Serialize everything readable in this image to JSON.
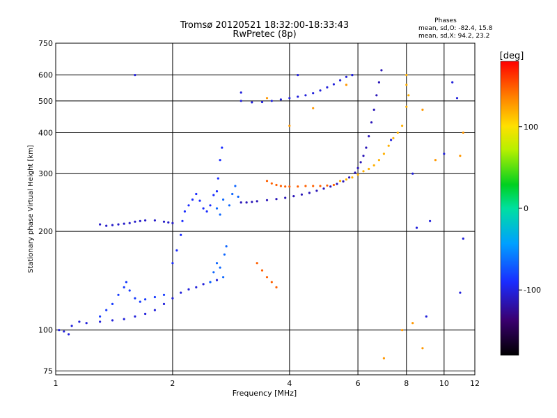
{
  "chart_data": {
    "type": "scatter",
    "title": "Tromsø 20120521 18:32:00-18:33:43",
    "subtitle": "RwPretec (8p)",
    "xlabel": "Frequency [MHz]",
    "ylabel": "Stationary phase Virtual Height [km]",
    "x_scale": "log",
    "y_scale": "log",
    "xlim": [
      1,
      12
    ],
    "ylim": [
      73,
      750
    ],
    "x_ticks": [
      "1",
      "2",
      "4",
      "6",
      "8",
      "10",
      "12"
    ],
    "x_tick_values": [
      1,
      2,
      4,
      6,
      8,
      10,
      12
    ],
    "y_ticks": [
      "75",
      "100",
      "200",
      "300",
      "400",
      "500",
      "600",
      "750"
    ],
    "y_tick_values": [
      75,
      100,
      200,
      300,
      400,
      500,
      600,
      750
    ],
    "grid": true,
    "legend": {
      "title": "Phases",
      "lines": [
        "mean, sd,O:  -82.4, 15.8",
        "mean, sd,X:  94.2, 23.2"
      ],
      "placement": "top-right"
    },
    "colorbar": {
      "label": "[deg]",
      "ticks": [
        "100",
        "0",
        "-100"
      ],
      "tick_values": [
        100,
        0,
        -100
      ],
      "range": [
        -180,
        180
      ]
    },
    "series": [
      {
        "phase": -110,
        "points": [
          [
            1.02,
            100
          ],
          [
            1.05,
            99
          ],
          [
            1.08,
            97
          ],
          [
            1.1,
            103
          ],
          [
            1.15,
            106
          ],
          [
            1.2,
            105
          ],
          [
            1.3,
            106
          ],
          [
            1.4,
            107
          ],
          [
            1.5,
            108
          ],
          [
            1.6,
            110
          ],
          [
            1.7,
            112
          ],
          [
            1.8,
            115
          ],
          [
            1.9,
            120
          ],
          [
            2.0,
            125
          ],
          [
            2.1,
            130
          ],
          [
            2.2,
            133
          ],
          [
            2.3,
            135
          ],
          [
            2.4,
            138
          ],
          [
            2.5,
            140
          ],
          [
            2.6,
            142
          ]
        ]
      },
      {
        "phase": -95,
        "points": [
          [
            1.3,
            110
          ],
          [
            1.35,
            115
          ],
          [
            1.4,
            120
          ],
          [
            1.45,
            128
          ],
          [
            1.5,
            135
          ],
          [
            1.52,
            140
          ],
          [
            1.55,
            132
          ],
          [
            1.6,
            125
          ],
          [
            1.65,
            122
          ],
          [
            1.7,
            124
          ],
          [
            1.8,
            126
          ],
          [
            1.9,
            128
          ]
        ]
      },
      {
        "phase": -100,
        "points": [
          [
            2.0,
            160
          ],
          [
            2.05,
            175
          ],
          [
            2.1,
            195
          ],
          [
            2.12,
            215
          ],
          [
            2.15,
            230
          ],
          [
            2.2,
            240
          ],
          [
            2.25,
            250
          ],
          [
            2.3,
            260
          ],
          [
            2.35,
            248
          ],
          [
            2.4,
            235
          ],
          [
            2.45,
            230
          ],
          [
            2.5,
            240
          ],
          [
            2.55,
            258
          ],
          [
            2.6,
            265
          ],
          [
            2.62,
            290
          ],
          [
            2.65,
            330
          ],
          [
            2.68,
            360
          ]
        ]
      },
      {
        "phase": -80,
        "points": [
          [
            2.5,
            140
          ],
          [
            2.55,
            150
          ],
          [
            2.6,
            160
          ],
          [
            2.65,
            155
          ],
          [
            2.7,
            145
          ],
          [
            2.72,
            170
          ],
          [
            2.75,
            180
          ],
          [
            2.8,
            240
          ],
          [
            2.85,
            260
          ],
          [
            2.9,
            275
          ],
          [
            2.95,
            255
          ],
          [
            2.6,
            235
          ],
          [
            2.65,
            225
          ],
          [
            2.7,
            250
          ]
        ]
      },
      {
        "phase": -115,
        "points": [
          [
            1.3,
            210
          ],
          [
            1.35,
            208
          ],
          [
            1.4,
            209
          ],
          [
            1.45,
            210
          ],
          [
            1.5,
            211
          ],
          [
            1.55,
            212
          ],
          [
            1.6,
            214
          ],
          [
            1.65,
            215
          ],
          [
            1.7,
            216
          ],
          [
            1.8,
            216
          ],
          [
            1.9,
            214
          ],
          [
            1.95,
            213
          ],
          [
            2.0,
            212
          ]
        ]
      },
      {
        "phase": -120,
        "points": [
          [
            3.0,
            245
          ],
          [
            3.1,
            245
          ],
          [
            3.2,
            246
          ],
          [
            3.3,
            247
          ],
          [
            3.5,
            249
          ],
          [
            3.7,
            251
          ],
          [
            3.9,
            253
          ],
          [
            4.1,
            256
          ],
          [
            4.3,
            259
          ],
          [
            4.5,
            262
          ],
          [
            4.7,
            266
          ],
          [
            4.9,
            270
          ],
          [
            5.1,
            274
          ],
          [
            5.3,
            279
          ],
          [
            5.5,
            284
          ],
          [
            5.7,
            292
          ],
          [
            5.9,
            302
          ],
          [
            6.0,
            312
          ],
          [
            6.1,
            325
          ],
          [
            6.2,
            340
          ],
          [
            6.3,
            360
          ],
          [
            6.4,
            390
          ],
          [
            6.5,
            430
          ],
          [
            6.6,
            470
          ],
          [
            6.7,
            520
          ],
          [
            6.8,
            570
          ],
          [
            6.9,
            620
          ]
        ]
      },
      {
        "phase": -110,
        "points": [
          [
            3.0,
            500
          ],
          [
            3.2,
            495
          ],
          [
            3.4,
            496
          ],
          [
            3.6,
            500
          ],
          [
            3.8,
            505
          ],
          [
            4.0,
            510
          ],
          [
            4.2,
            515
          ],
          [
            4.4,
            520
          ],
          [
            4.6,
            528
          ],
          [
            4.8,
            538
          ],
          [
            5.0,
            550
          ],
          [
            5.2,
            562
          ],
          [
            5.4,
            578
          ],
          [
            5.6,
            592
          ],
          [
            5.8,
            600
          ]
        ]
      },
      {
        "phase": 150,
        "points": [
          [
            3.5,
            285
          ],
          [
            3.6,
            280
          ],
          [
            3.7,
            277
          ],
          [
            3.8,
            275
          ],
          [
            3.9,
            274
          ],
          [
            4.0,
            274
          ],
          [
            4.2,
            274
          ],
          [
            4.4,
            275
          ],
          [
            4.6,
            275
          ],
          [
            4.8,
            275
          ],
          [
            5.0,
            276
          ],
          [
            5.2,
            277
          ],
          [
            3.3,
            160
          ],
          [
            3.4,
            152
          ],
          [
            3.5,
            145
          ],
          [
            3.6,
            140
          ],
          [
            3.7,
            135
          ]
        ]
      },
      {
        "phase": 120,
        "points": [
          [
            5.4,
            285
          ],
          [
            5.6,
            288
          ],
          [
            5.8,
            292
          ],
          [
            6.0,
            298
          ],
          [
            6.2,
            305
          ],
          [
            6.4,
            310
          ],
          [
            6.6,
            318
          ],
          [
            6.8,
            330
          ],
          [
            7.0,
            345
          ],
          [
            7.2,
            365
          ],
          [
            7.4,
            385
          ],
          [
            7.6,
            400
          ],
          [
            7.8,
            420
          ],
          [
            8.0,
            600
          ],
          [
            8.0,
            560
          ],
          [
            8.1,
            520
          ],
          [
            8.0,
            480
          ]
        ]
      },
      {
        "phase": -110,
        "points": [
          [
            1.6,
            600
          ],
          [
            3.0,
            530
          ],
          [
            4.2,
            600
          ],
          [
            5.8,
            600
          ],
          [
            7.3,
            380
          ],
          [
            8.3,
            300
          ],
          [
            9.0,
            110
          ],
          [
            10.5,
            570
          ],
          [
            10.8,
            510
          ],
          [
            11.0,
            130
          ],
          [
            11.2,
            190
          ],
          [
            8.5,
            205
          ],
          [
            9.2,
            215
          ],
          [
            10.0,
            345
          ]
        ]
      },
      {
        "phase": 130,
        "points": [
          [
            3.5,
            510
          ],
          [
            4.0,
            420
          ],
          [
            5.6,
            560
          ],
          [
            8.8,
            470
          ],
          [
            9.5,
            330
          ],
          [
            11.0,
            340
          ],
          [
            11.2,
            400
          ],
          [
            7.8,
            100
          ],
          [
            8.8,
            88
          ],
          [
            8.3,
            105
          ],
          [
            4.6,
            475
          ],
          [
            7.0,
            82
          ]
        ]
      }
    ]
  }
}
